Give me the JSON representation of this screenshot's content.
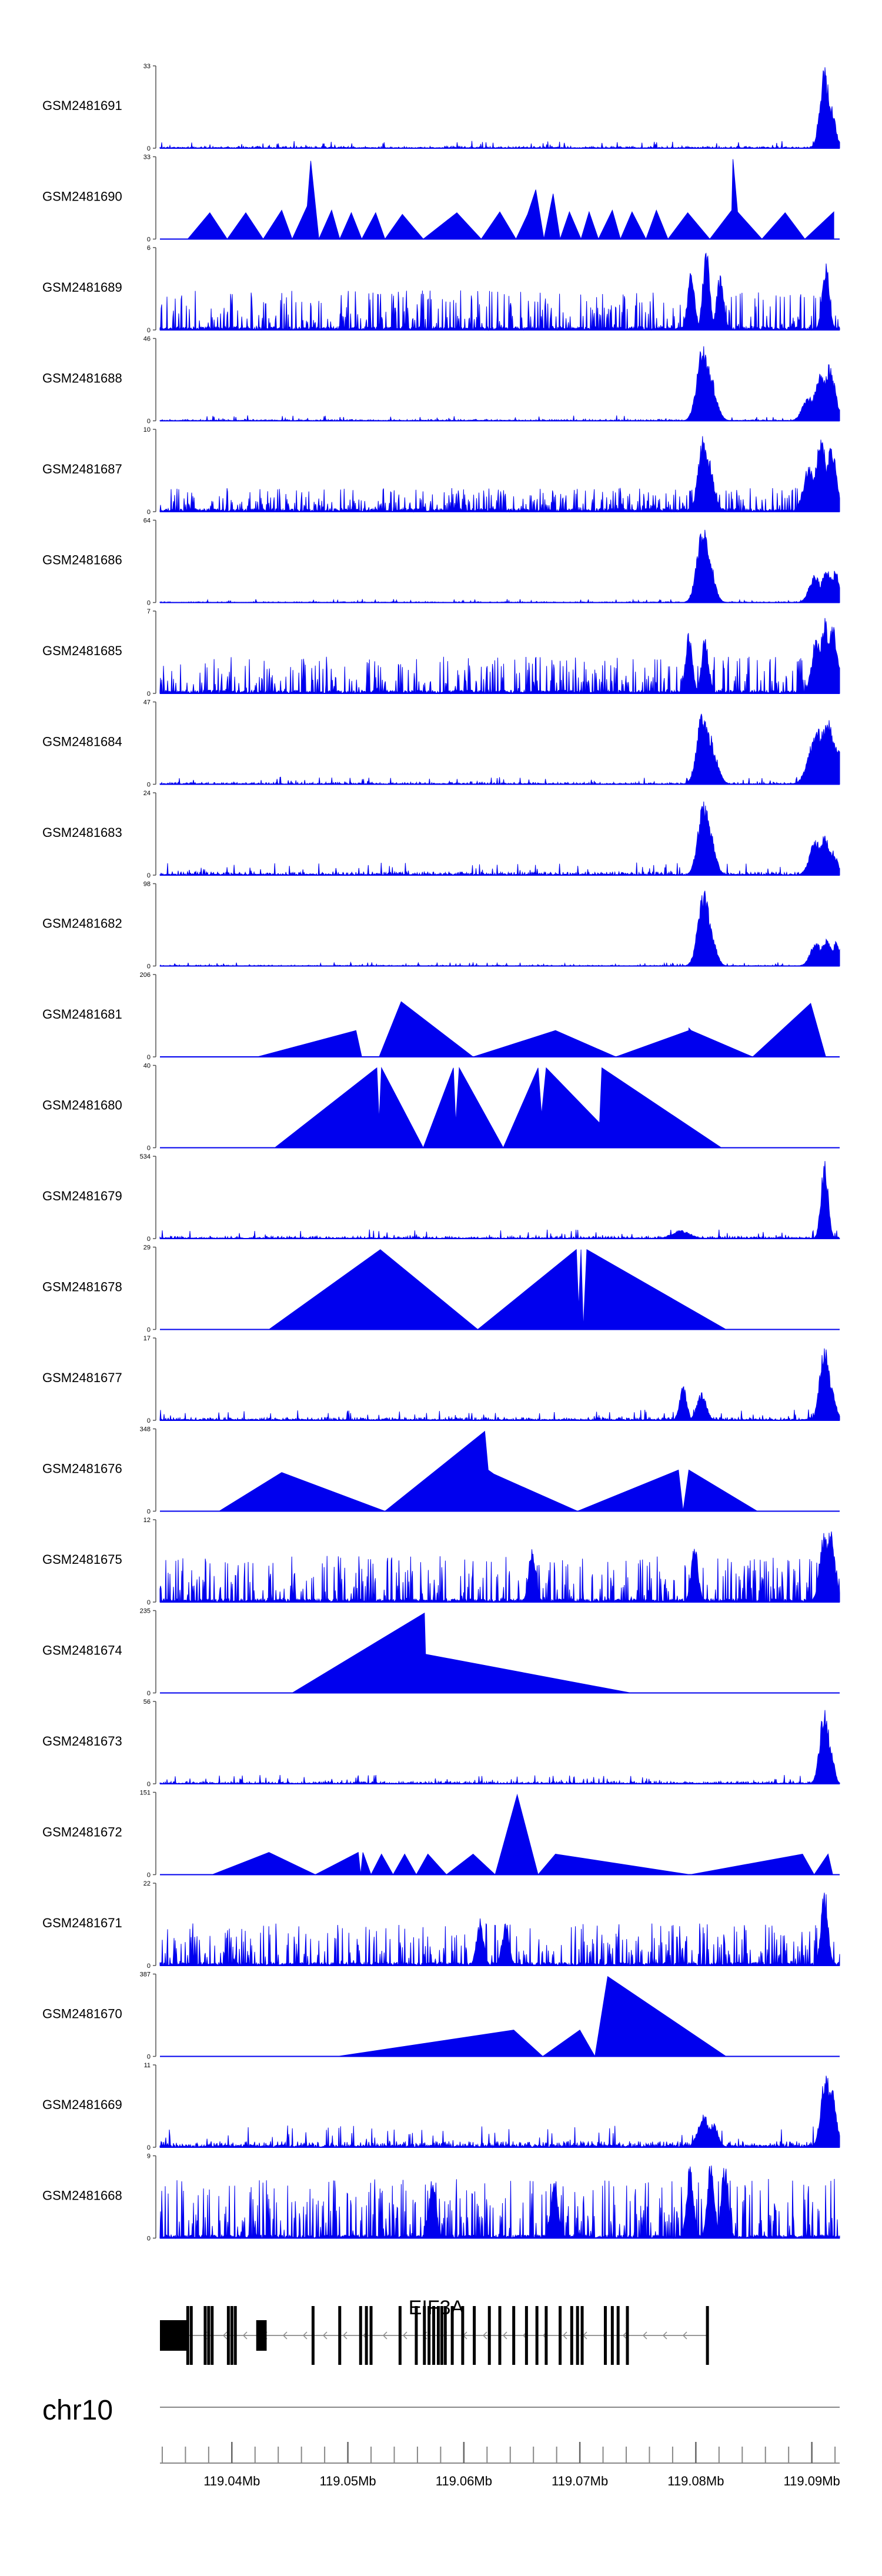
{
  "chart_data": {
    "type": "area",
    "title": "",
    "chromosome": "chr10",
    "gene": "EIF3A",
    "xlim_mb": [
      119.0338,
      119.0924
    ],
    "x_ticks_mb": [
      119.04,
      119.05,
      119.06,
      119.07,
      119.08,
      119.09
    ],
    "x_tick_labels": [
      "119.04Mb",
      "119.05Mb",
      "119.06Mb",
      "119.07Mb",
      "119.08Mb",
      "119.09Mb"
    ],
    "series_color": "#0000ee",
    "tracks": [
      {
        "name": "GSM2481691",
        "ymax": "33",
        "ymin": "0",
        "style": "dense",
        "base": 0.04,
        "peaks": [
          [
            119.0911,
            1.0,
            0.0004
          ],
          [
            119.0916,
            0.55,
            0.0004
          ]
        ]
      },
      {
        "name": "GSM2481690",
        "ymax": "33",
        "ymin": "0",
        "style": "triangles",
        "points": [
          [
            119.0362,
            0
          ],
          [
            119.0381,
            0.32
          ],
          [
            119.0396,
            0
          ],
          [
            119.0412,
            0.32
          ],
          [
            119.0427,
            0
          ],
          [
            119.0443,
            0.35
          ],
          [
            119.0452,
            0
          ],
          [
            119.0465,
            0.4
          ],
          [
            119.0468,
            0.95
          ],
          [
            119.0475,
            0
          ],
          [
            119.0486,
            0.35
          ],
          [
            119.0493,
            0
          ],
          [
            119.0503,
            0.32
          ],
          [
            119.0512,
            0
          ],
          [
            119.0524,
            0.32
          ],
          [
            119.0532,
            0
          ],
          [
            119.0547,
            0.3
          ],
          [
            119.0565,
            0
          ],
          [
            119.0594,
            0.32
          ],
          [
            119.0615,
            0
          ],
          [
            119.0631,
            0.33
          ],
          [
            119.0645,
            0
          ],
          [
            119.0655,
            0.3
          ],
          [
            119.0662,
            0.6
          ],
          [
            119.0669,
            0
          ],
          [
            119.0677,
            0.55
          ],
          [
            119.0683,
            0
          ],
          [
            119.0691,
            0.33
          ],
          [
            119.0701,
            0
          ],
          [
            119.0708,
            0.33
          ],
          [
            119.0716,
            0
          ],
          [
            119.0728,
            0.35
          ],
          [
            119.0735,
            0
          ],
          [
            119.0745,
            0.33
          ],
          [
            119.0757,
            0
          ],
          [
            119.0766,
            0.35
          ],
          [
            119.0776,
            0
          ],
          [
            119.0793,
            0.32
          ],
          [
            119.0812,
            0
          ],
          [
            119.0831,
            0.35
          ],
          [
            119.0832,
            0.97
          ],
          [
            119.0836,
            0.33
          ],
          [
            119.0857,
            0
          ],
          [
            119.0877,
            0.32
          ],
          [
            119.0894,
            0
          ],
          [
            119.0919,
            0.33
          ],
          [
            119.0919,
            0
          ]
        ]
      },
      {
        "name": "GSM2481689",
        "ymax": "6",
        "ymin": "0",
        "style": "spiky",
        "base": 0.3,
        "peaks": [
          [
            119.0809,
            1.0,
            0.0003
          ],
          [
            119.0796,
            0.75,
            0.0003
          ],
          [
            119.0821,
            0.7,
            0.0003
          ],
          [
            119.0912,
            0.85,
            0.0003
          ]
        ]
      },
      {
        "name": "GSM2481688",
        "ymax": "46",
        "ymin": "0",
        "style": "dense",
        "base": 0.03,
        "peaks": [
          [
            119.0806,
            0.95,
            0.0005
          ],
          [
            119.081,
            0.7,
            0.0006
          ],
          [
            119.0814,
            0.35,
            0.0005
          ],
          [
            119.0908,
            0.6,
            0.0006
          ],
          [
            119.0915,
            0.7,
            0.0005
          ],
          [
            119.0897,
            0.3,
            0.0005
          ]
        ]
      },
      {
        "name": "GSM2481687",
        "ymax": "10",
        "ymin": "0",
        "style": "spiky",
        "base": 0.18,
        "peaks": [
          [
            119.0806,
            0.95,
            0.0004
          ],
          [
            119.081,
            0.7,
            0.0005
          ],
          [
            119.0908,
            0.9,
            0.0005
          ],
          [
            119.0917,
            0.85,
            0.0004
          ],
          [
            119.0898,
            0.6,
            0.0005
          ]
        ]
      },
      {
        "name": "GSM2481686",
        "ymax": "64",
        "ymin": "0",
        "style": "dense",
        "base": 0.02,
        "peaks": [
          [
            119.0806,
            0.95,
            0.0005
          ],
          [
            119.081,
            0.65,
            0.0005
          ],
          [
            119.0903,
            0.35,
            0.0005
          ],
          [
            119.0913,
            0.4,
            0.0005
          ],
          [
            119.092,
            0.4,
            0.0004
          ]
        ]
      },
      {
        "name": "GSM2481685",
        "ymax": "7",
        "ymin": "0",
        "style": "spiky",
        "base": 0.28,
        "peaks": [
          [
            119.0911,
            0.95,
            0.0004
          ],
          [
            119.0918,
            0.85,
            0.0004
          ],
          [
            119.0904,
            0.7,
            0.0004
          ],
          [
            119.0808,
            0.7,
            0.0003
          ],
          [
            119.0794,
            0.75,
            0.0003
          ]
        ]
      },
      {
        "name": "GSM2481684",
        "ymax": "47",
        "ymin": "0",
        "style": "dense",
        "base": 0.04,
        "peaks": [
          [
            119.0806,
            0.92,
            0.0005
          ],
          [
            119.0811,
            0.65,
            0.0006
          ],
          [
            119.0815,
            0.35,
            0.0005
          ],
          [
            119.0905,
            0.7,
            0.0007
          ],
          [
            119.0913,
            0.85,
            0.0006
          ],
          [
            119.092,
            0.55,
            0.0005
          ]
        ]
      },
      {
        "name": "GSM2481683",
        "ymax": "24",
        "ymin": "0",
        "style": "dense",
        "base": 0.07,
        "peaks": [
          [
            119.0807,
            0.95,
            0.0005
          ],
          [
            119.0811,
            0.6,
            0.0005
          ],
          [
            119.0903,
            0.45,
            0.0005
          ],
          [
            119.0911,
            0.5,
            0.0005
          ],
          [
            119.0918,
            0.3,
            0.0004
          ]
        ]
      },
      {
        "name": "GSM2481682",
        "ymax": "98",
        "ymin": "0",
        "style": "dense",
        "base": 0.02,
        "peaks": [
          [
            119.0807,
            0.95,
            0.0005
          ],
          [
            119.0811,
            0.55,
            0.0005
          ],
          [
            119.0904,
            0.3,
            0.0005
          ],
          [
            119.0913,
            0.35,
            0.0005
          ],
          [
            119.0921,
            0.3,
            0.0004
          ]
        ]
      },
      {
        "name": "GSM2481681",
        "ymax": "206",
        "ymin": "0",
        "style": "triangles",
        "points": [
          [
            119.0422,
            0
          ],
          [
            119.0507,
            0.32
          ],
          [
            119.0512,
            0
          ],
          [
            119.0527,
            0
          ],
          [
            119.0546,
            0.67
          ],
          [
            119.0608,
            0
          ],
          [
            119.0679,
            0.32
          ],
          [
            119.0731,
            0
          ],
          [
            119.0794,
            0.32
          ],
          [
            119.0794,
            0.35
          ],
          [
            119.0796,
            0.32
          ],
          [
            119.0849,
            0
          ],
          [
            119.0899,
            0.65
          ],
          [
            119.0912,
            0
          ],
          [
            119.0918,
            0
          ]
        ]
      },
      {
        "name": "GSM2481680",
        "ymax": "40",
        "ymin": "0",
        "style": "triangles",
        "points": [
          [
            119.0437,
            0
          ],
          [
            119.0525,
            0.97
          ],
          [
            119.0527,
            0.33
          ],
          [
            119.0529,
            0.97
          ],
          [
            119.0565,
            0
          ],
          [
            119.0591,
            0.97
          ],
          [
            119.0593,
            0.3
          ],
          [
            119.0596,
            0.97
          ],
          [
            119.0634,
            0
          ],
          [
            119.0664,
            0.97
          ],
          [
            119.0667,
            0.4
          ],
          [
            119.0671,
            0.97
          ],
          [
            119.0717,
            0.3
          ],
          [
            119.0719,
            0.97
          ],
          [
            119.0822,
            0
          ]
        ]
      },
      {
        "name": "GSM2481679",
        "ymax": "534",
        "ymin": "0",
        "style": "dense",
        "base": 0.05,
        "peaks": [
          [
            119.0911,
            1.0,
            0.0003
          ],
          [
            119.0787,
            0.1,
            0.0008
          ]
        ]
      },
      {
        "name": "GSM2481678",
        "ymax": "29",
        "ymin": "0",
        "style": "triangles",
        "points": [
          [
            119.0432,
            0
          ],
          [
            119.0528,
            0.97
          ],
          [
            119.0612,
            0
          ],
          [
            119.0697,
            0.97
          ],
          [
            119.0699,
            0.25
          ],
          [
            119.0701,
            0.97
          ],
          [
            119.0703,
            0
          ],
          [
            119.0706,
            0.97
          ],
          [
            119.0826,
            0
          ]
        ]
      },
      {
        "name": "GSM2481677",
        "ymax": "17",
        "ymin": "0",
        "style": "dense",
        "base": 0.06,
        "peaks": [
          [
            119.0911,
            0.97,
            0.0004
          ],
          [
            119.0916,
            0.45,
            0.0004
          ],
          [
            119.0789,
            0.45,
            0.0003
          ],
          [
            119.0805,
            0.35,
            0.0004
          ]
        ]
      },
      {
        "name": "GSM2481676",
        "ymax": "348",
        "ymin": "0",
        "style": "triangles",
        "points": [
          [
            119.0389,
            0
          ],
          [
            119.0443,
            0.47
          ],
          [
            119.0532,
            0
          ],
          [
            119.0618,
            0.97
          ],
          [
            119.0621,
            0.5
          ],
          [
            119.0626,
            0.45
          ],
          [
            119.0698,
            0
          ],
          [
            119.0785,
            0.5
          ],
          [
            119.0789,
            0
          ],
          [
            119.0794,
            0.5
          ],
          [
            119.0853,
            0
          ]
        ]
      },
      {
        "name": "GSM2481675",
        "ymax": "12",
        "ymin": "0",
        "style": "spiky",
        "base": 0.35,
        "peaks": [
          [
            119.0911,
            0.95,
            0.0004
          ],
          [
            119.0916,
            0.9,
            0.0004
          ],
          [
            119.0799,
            0.7,
            0.0003
          ],
          [
            119.0659,
            0.7,
            0.0003
          ]
        ]
      },
      {
        "name": "GSM2481674",
        "ymax": "235",
        "ymin": "0",
        "style": "triangles",
        "points": [
          [
            119.0452,
            0
          ],
          [
            119.0566,
            0.97
          ],
          [
            119.0567,
            0.47
          ],
          [
            119.0744,
            0
          ]
        ]
      },
      {
        "name": "GSM2481673",
        "ymax": "56",
        "ymin": "0",
        "style": "dense",
        "base": 0.05,
        "peaks": [
          [
            119.0911,
            0.97,
            0.0004
          ],
          [
            119.0916,
            0.45,
            0.0003
          ]
        ]
      },
      {
        "name": "GSM2481672",
        "ymax": "151",
        "ymin": "0",
        "style": "triangles",
        "points": [
          [
            119.0383,
            0
          ],
          [
            119.0432,
            0.27
          ],
          [
            119.0472,
            0
          ],
          [
            119.0509,
            0.27
          ],
          [
            119.0511,
            0
          ],
          [
            119.0513,
            0.27
          ],
          [
            119.052,
            0
          ],
          [
            119.0529,
            0.25
          ],
          [
            119.0539,
            0
          ],
          [
            119.0549,
            0.25
          ],
          [
            119.0559,
            0
          ],
          [
            119.0569,
            0.25
          ],
          [
            119.0585,
            0
          ],
          [
            119.0608,
            0.25
          ],
          [
            119.0627,
            0
          ],
          [
            119.0646,
            0.97
          ],
          [
            119.0664,
            0
          ],
          [
            119.0679,
            0.25
          ],
          [
            119.0795,
            0
          ],
          [
            119.0892,
            0.25
          ],
          [
            119.0902,
            0
          ],
          [
            119.0914,
            0.25
          ],
          [
            119.0918,
            0
          ]
        ]
      },
      {
        "name": "GSM2481671",
        "ymax": "22",
        "ymin": "0",
        "style": "spiky",
        "base": 0.32,
        "peaks": [
          [
            119.0911,
            0.97,
            0.0003
          ],
          [
            119.0614,
            0.6,
            0.0003
          ],
          [
            119.0636,
            0.55,
            0.0003
          ]
        ]
      },
      {
        "name": "GSM2481670",
        "ymax": "387",
        "ymin": "0",
        "style": "triangles",
        "points": [
          [
            119.0491,
            0
          ],
          [
            119.0643,
            0.32
          ],
          [
            119.0668,
            0
          ],
          [
            119.07,
            0.32
          ],
          [
            119.0713,
            0
          ],
          [
            119.0724,
            0.97
          ],
          [
            119.0826,
            0
          ]
        ]
      },
      {
        "name": "GSM2481669",
        "ymax": "11",
        "ymin": "0",
        "style": "dense",
        "base": 0.12,
        "peaks": [
          [
            119.0912,
            0.97,
            0.0004
          ],
          [
            119.0917,
            0.75,
            0.0004
          ],
          [
            119.0807,
            0.4,
            0.0005
          ],
          [
            119.0815,
            0.3,
            0.0004
          ]
        ]
      },
      {
        "name": "GSM2481668",
        "ymax": "9",
        "ymin": "0",
        "style": "spiky",
        "base": 0.45,
        "peaks": [
          [
            119.0813,
            0.97,
            0.0003
          ],
          [
            119.0795,
            0.9,
            0.0003
          ],
          [
            119.0825,
            0.95,
            0.0003
          ],
          [
            119.0678,
            0.75,
            0.0003
          ],
          [
            119.0573,
            0.75,
            0.0003
          ]
        ]
      }
    ],
    "gene_model": {
      "start_mb": 119.0338,
      "end_mb": 119.0811,
      "strand": "-",
      "utr_blocks": [
        [
          119.0338,
          119.0361
        ],
        [
          119.0421,
          119.043
        ]
      ],
      "exons_mb": [
        119.0362,
        119.0365,
        119.0377,
        119.038,
        119.0383,
        119.0397,
        119.04,
        119.0403,
        119.047,
        119.0493,
        119.0511,
        119.0516,
        119.052,
        119.0545,
        119.0559,
        119.0566,
        119.057,
        119.0574,
        119.0578,
        119.0581,
        119.0584,
        119.059,
        119.0599,
        119.0609,
        119.0622,
        119.0631,
        119.0643,
        119.0654,
        119.0663,
        119.0671,
        119.0683,
        119.0693,
        119.0698,
        119.0702,
        119.0722,
        119.0728,
        119.0733,
        119.0741,
        119.081
      ]
    }
  }
}
